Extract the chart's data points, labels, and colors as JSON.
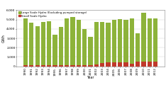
{
  "years": [
    1990,
    1991,
    1992,
    1993,
    1994,
    1995,
    1996,
    1997,
    1998,
    1999,
    2000,
    2001,
    2002,
    2003,
    2004,
    2005,
    2006,
    2007,
    2008,
    2009,
    2010,
    2011,
    2012
  ],
  "large_scale": [
    5100,
    4650,
    4300,
    4750,
    4850,
    3400,
    4200,
    5100,
    5250,
    4950,
    4000,
    3150,
    4750,
    4750,
    4700,
    5000,
    5050,
    5000,
    5100,
    3550,
    5700,
    5100,
    5100
  ],
  "small_scale": [
    100,
    100,
    100,
    100,
    100,
    100,
    100,
    100,
    100,
    100,
    100,
    100,
    200,
    350,
    400,
    400,
    400,
    400,
    300,
    500,
    500,
    500,
    500
  ],
  "large_color": "#8db33a",
  "small_color": "#c0392b",
  "ylabel": "GWh",
  "xlabel": "Year",
  "ylim": [
    0,
    6000
  ],
  "yticks": [
    0,
    1000,
    2000,
    3000,
    4000,
    5000,
    6000
  ],
  "legend_large": "Large Scale Hydro (Excluding pumped storage)",
  "legend_small": "Small Scale Hydro",
  "bar_width": 0.75
}
